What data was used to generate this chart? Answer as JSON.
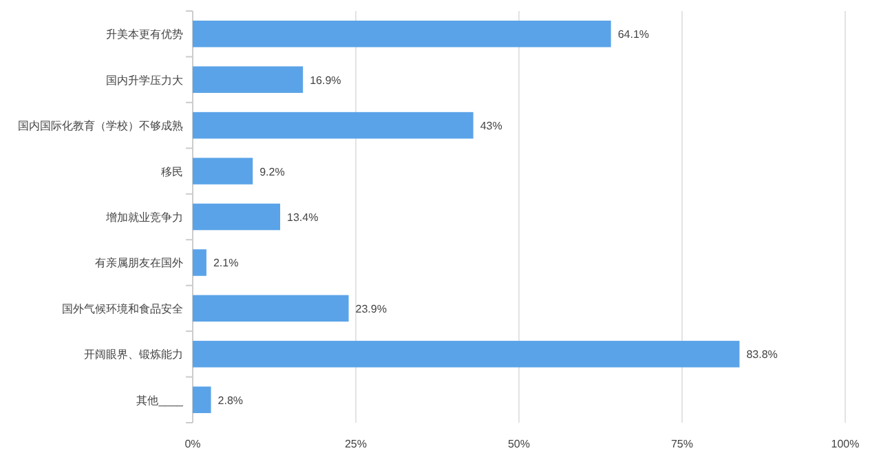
{
  "chart_data": {
    "type": "bar",
    "orientation": "horizontal",
    "categories": [
      "升美本更有优势",
      "国内升学压力大",
      "国内国际化教育（学校）不够成熟",
      "移民",
      "增加就业竞争力",
      "有亲属朋友在国外",
      "国外气候环境和食品安全",
      "开阔眼界、锻炼能力",
      "其他____"
    ],
    "values": [
      64.1,
      16.9,
      43,
      9.2,
      13.4,
      2.1,
      23.9,
      83.8,
      2.8
    ],
    "value_labels": [
      "64.1%",
      "16.9%",
      "43%",
      "9.2%",
      "13.4%",
      "2.1%",
      "23.9%",
      "83.8%",
      "2.8%"
    ],
    "color": "#5aa3e8",
    "xlim": [
      0,
      100
    ],
    "xticks": [
      {
        "value": 0,
        "label": "0%"
      },
      {
        "value": 25,
        "label": "25%"
      },
      {
        "value": 50,
        "label": "50%"
      },
      {
        "value": 75,
        "label": "75%"
      },
      {
        "value": 100,
        "label": "100%"
      }
    ],
    "grid": "x"
  }
}
